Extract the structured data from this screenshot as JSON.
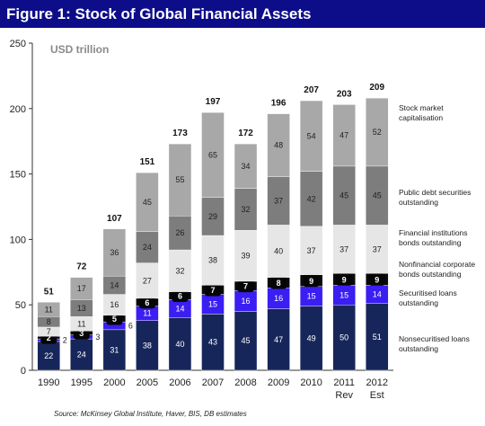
{
  "title": "Figure 1: Stock of Global Financial Assets",
  "source": "Source: McKinsey Global Institute, Haver, BIS, DB estimates",
  "chart_data": {
    "type": "bar",
    "stacked": true,
    "unit_label": "USD trillion",
    "ylim": [
      0,
      250
    ],
    "yticks": [
      0,
      50,
      100,
      150,
      200,
      250
    ],
    "categories": [
      "1990",
      "1995",
      "2000",
      "2005",
      "2006",
      "2007",
      "2008",
      "2009",
      "2010",
      "2011",
      "2012"
    ],
    "category_sublabels": [
      "",
      "",
      "",
      "",
      "",
      "",
      "",
      "",
      "",
      "Rev",
      "Est"
    ],
    "totals": [
      "51",
      "72",
      "107",
      "151",
      "173",
      "197",
      "172",
      "196",
      "207",
      "203",
      "209"
    ],
    "series": [
      {
        "name": "Nonsecuritised loans outstanding",
        "color": "#17265a",
        "values": [
          22,
          24,
          31,
          38,
          40,
          43,
          45,
          47,
          49,
          50,
          51
        ],
        "labels": [
          "22",
          "24",
          "31",
          "38",
          "40",
          "43",
          "45",
          "47",
          "49",
          "50",
          "51"
        ]
      },
      {
        "name": "Securitised loans outstanding",
        "color": "#3a1ef2",
        "values": [
          2,
          3,
          6,
          11,
          14,
          15,
          16,
          16,
          15,
          15,
          14
        ],
        "labels": [
          "2",
          "3",
          "6",
          "11",
          "14",
          "15",
          "16",
          "16",
          "15",
          "15",
          "14"
        ]
      },
      {
        "name": "Nonfinancial corporate bonds outstanding",
        "color": "#0a0a0a",
        "values": [
          2,
          3,
          5,
          6,
          6,
          7,
          7,
          8,
          9,
          9,
          9
        ],
        "labels": [
          "2",
          "3",
          "5",
          "6",
          "6",
          "7",
          "7",
          "8",
          "9",
          "9",
          "9"
        ]
      },
      {
        "name": "Financial institutions bonds outstanding",
        "color": "#e6e6e6",
        "values": [
          7,
          11,
          16,
          27,
          32,
          38,
          39,
          40,
          37,
          37,
          37
        ],
        "labels": [
          "7",
          "11",
          "16",
          "27",
          "32",
          "38",
          "39",
          "40",
          "37",
          "37",
          "37"
        ]
      },
      {
        "name": "Public debt securities outstanding",
        "color": "#7d7d7d",
        "values": [
          8,
          13,
          14,
          24,
          26,
          29,
          32,
          37,
          42,
          45,
          45
        ],
        "labels": [
          "8",
          "13",
          "14",
          "24",
          "26",
          "29",
          "32",
          "37",
          "42",
          "45",
          "45"
        ]
      },
      {
        "name": "Stock market capitalisation",
        "color": "#a8a8a8",
        "values": [
          11,
          17,
          36,
          45,
          55,
          65,
          34,
          48,
          54,
          47,
          52
        ],
        "labels": [
          "11",
          "17",
          "36",
          "45",
          "55",
          "65",
          "34",
          "48",
          "54",
          "47",
          "52"
        ]
      }
    ],
    "legend_placement": "right",
    "grid": false
  }
}
